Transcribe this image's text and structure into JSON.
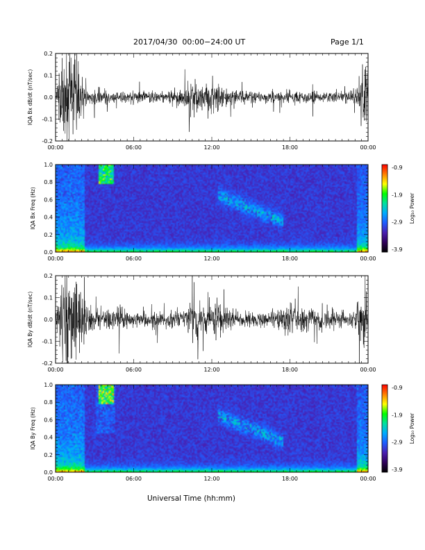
{
  "header": {
    "title": "2017/04/30  00:00−24:00 UT",
    "page": "Page 1/1"
  },
  "footer": {
    "xlabel": "Universal Time (hh:mm)"
  },
  "colors": {
    "trace": "#000000",
    "colorbar_stops": [
      "#000000",
      "#30005a",
      "#4a1fb0",
      "#1f5cff",
      "#00aaff",
      "#00e0a0",
      "#00ff00",
      "#ffff00",
      "#ff8000",
      "#ff0000"
    ]
  },
  "chart_data": [
    {
      "type": "line",
      "ylabel": "IQA Bx dB/dt (nT/sec)",
      "xlim": [
        0,
        24
      ],
      "ylim": [
        -0.2,
        0.2
      ],
      "x_ticks": [
        "00:00",
        "06:00",
        "12:00",
        "18:00",
        "00:00"
      ],
      "y_ticks": [
        "-0.2",
        "-0.1",
        "0.0",
        "0.1",
        "0.2"
      ],
      "activity_envelope": {
        "hours": [
          0,
          0.5,
          1.0,
          1.5,
          2.0,
          2.5,
          3,
          4,
          5,
          6,
          8,
          10,
          10.8,
          11.5,
          12.5,
          13,
          14,
          16,
          17,
          18,
          19,
          20,
          21,
          22,
          23,
          23.8,
          24
        ],
        "amplitude": [
          0.02,
          0.2,
          0.22,
          0.22,
          0.08,
          0.03,
          0.04,
          0.03,
          0.03,
          0.03,
          0.03,
          0.05,
          0.12,
          0.05,
          0.1,
          0.04,
          0.03,
          0.025,
          0.03,
          0.03,
          0.03,
          0.03,
          0.025,
          0.025,
          0.03,
          0.2,
          0.05
        ]
      }
    },
    {
      "type": "heatmap",
      "ylabel": "IQA Bx Freq (Hz)",
      "xlim": [
        0,
        24
      ],
      "ylim": [
        0.0,
        1.0
      ],
      "x_ticks": [
        "00:00",
        "06:00",
        "12:00",
        "18:00",
        "00:00"
      ],
      "y_ticks": [
        "0.0",
        "0.2",
        "0.4",
        "0.6",
        "0.8",
        "1.0"
      ],
      "colorbar_label": "Log₁₀ Power",
      "colorbar_ticks": [
        "-0.9",
        "-1.9",
        "-2.9",
        "-3.9"
      ],
      "zlim": [
        -3.9,
        -0.9
      ]
    },
    {
      "type": "line",
      "ylabel": "IQA By dB/dt (nT/sec)",
      "xlim": [
        0,
        24
      ],
      "ylim": [
        -0.2,
        0.2
      ],
      "x_ticks": [
        "00:00",
        "06:00",
        "12:00",
        "18:00",
        "00:00"
      ],
      "y_ticks": [
        "-0.2",
        "-0.1",
        "0.0",
        "0.1",
        "0.2"
      ],
      "activity_envelope": {
        "hours": [
          0,
          0.5,
          1.0,
          1.5,
          2.0,
          2.5,
          3,
          4,
          5,
          6,
          8,
          10,
          10.8,
          11.5,
          12.5,
          13,
          14,
          16,
          17,
          18,
          19,
          20,
          21,
          22,
          23,
          23.8,
          24
        ],
        "amplitude": [
          0.03,
          0.2,
          0.22,
          0.22,
          0.12,
          0.06,
          0.06,
          0.05,
          0.05,
          0.04,
          0.04,
          0.05,
          0.12,
          0.06,
          0.12,
          0.05,
          0.04,
          0.04,
          0.05,
          0.09,
          0.07,
          0.06,
          0.05,
          0.04,
          0.04,
          0.2,
          0.05
        ]
      }
    },
    {
      "type": "heatmap",
      "ylabel": "IQA By Freq (Hz)",
      "xlim": [
        0,
        24
      ],
      "ylim": [
        0.0,
        1.0
      ],
      "x_ticks": [
        "00:00",
        "06:00",
        "12:00",
        "18:00",
        "00:00"
      ],
      "y_ticks": [
        "0.0",
        "0.2",
        "0.4",
        "0.6",
        "0.8",
        "1.0"
      ],
      "colorbar_label": "Log₁₀ Power",
      "colorbar_ticks": [
        "-0.9",
        "-1.9",
        "-2.9",
        "-3.9"
      ],
      "zlim": [
        -3.9,
        -0.9
      ]
    }
  ]
}
